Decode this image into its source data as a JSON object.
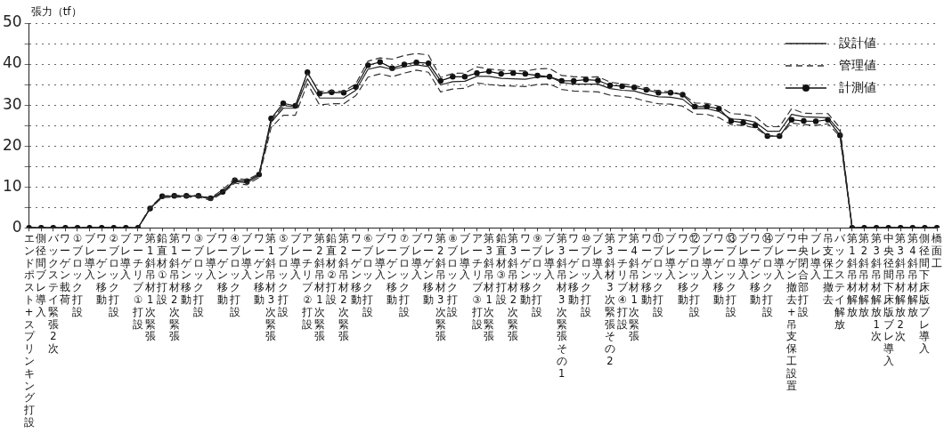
{
  "chart_data": {
    "type": "line",
    "ylabel": "張力（tf）",
    "categories": [
      "エンドポスト+スプリンキング打設",
      "側径間ブレ導入",
      "バックステイ緊張2次",
      "ワーゲン載荷",
      "①ブロック打設",
      "ブレ導入",
      "ワーゲン移動",
      "②ブロック打設",
      "ブレ導入",
      "アーチリブ①打設",
      "第1斜吊材1次緊張",
      "鉛直材①打設",
      "第1斜吊材2次緊張",
      "ワーゲン移動",
      "③ブロック打設",
      "ブレ導入",
      "ワーゲン移動",
      "④ブロック打設",
      "ブレ導入",
      "ワーゲン移動",
      "第1斜吊材3次緊張",
      "⑤ブロック打設",
      "ブレ導入",
      "アーチリブ②打設",
      "第2斜吊材1次緊張",
      "鉛直材②打設",
      "第2斜吊材2次緊張",
      "ワーゲン移動",
      "⑥ブロック打設",
      "ブレ導入",
      "ワーゲン移動",
      "⑦ブロック打設",
      "ブレ導入",
      "ワーゲン移動",
      "第2斜吊材3次緊張",
      "⑧ブロック打設",
      "ブレ導入",
      "アーチリブ③打設",
      "第3斜吊材1次緊張",
      "鉛直材③打設",
      "第3斜吊材2次緊張",
      "ワーゲン移動",
      "⑨ブロック打設",
      "ブレ導入",
      "第3斜吊材3次緊張その1",
      "ワーゲン移動",
      "⑩ブロック打設",
      "ブレ導入",
      "第3斜材3次緊張その2",
      "アーチリブ④打設",
      "第4斜吊材1次緊張",
      "ワーゲン移動",
      "⑪ブロック打設",
      "ブレ導入",
      "ワーゲン移動",
      "⑫ブロック打設",
      "ブレ導入",
      "ワーゲン移動",
      "⑬ブロック打設",
      "ブレ導入",
      "ワーゲン移動",
      "⑭ブロック打設",
      "ブレ導入",
      "ワーゲン撤去+吊支保工設置",
      "中央閉合部打設",
      "ブレ導入",
      "吊支保工撤去",
      "バックステイ解放",
      "第1斜吊材解放",
      "第2斜吊材解放",
      "第3斜吊材解放1次",
      "中央径間下床版ブレ導入",
      "第3斜吊材解放2次",
      "第4斜吊材解放",
      "側径間下床版ブレ導入",
      "橋面工"
    ],
    "series": [
      {
        "name": "設計値",
        "color": "#222222",
        "line_style": "solid",
        "marker": "none",
        "values": [
          0,
          0,
          0,
          0,
          0,
          0,
          0,
          0,
          0,
          0,
          4.8,
          7.6,
          7.7,
          7.7,
          7.7,
          7.0,
          8.8,
          11.3,
          11.0,
          12.7,
          25.8,
          29.2,
          29.2,
          36.4,
          31.7,
          31.7,
          31.7,
          33.6,
          38.7,
          39.4,
          38.7,
          39.3,
          39.8,
          39.4,
          34.9,
          35.7,
          35.8,
          37.0,
          37.0,
          36.5,
          36.4,
          36.3,
          36.8,
          36.9,
          35.5,
          35.1,
          35.1,
          35.1,
          34.0,
          33.6,
          33.4,
          32.6,
          32.0,
          31.9,
          31.4,
          29.1,
          29.1,
          28.4,
          26.6,
          26.4,
          25.8,
          23.6,
          23.6,
          27.7,
          27.1,
          27.0,
          26.9,
          23.6,
          0,
          0,
          0,
          0,
          0,
          0,
          0,
          0
        ]
      },
      {
        "name": "管理値",
        "color": "#333333",
        "line_style": "dashed",
        "marker": "none",
        "values": [
          0,
          0,
          0,
          0,
          0,
          0,
          0,
          0,
          0,
          0,
          5.0,
          7.8,
          7.9,
          7.9,
          7.9,
          7.3,
          9.3,
          12.0,
          11.8,
          13.2,
          26.3,
          29.8,
          29.6,
          37.7,
          33.3,
          33.4,
          33.3,
          35.2,
          40.7,
          41.5,
          41.2,
          42.1,
          42.6,
          42.2,
          36.7,
          37.7,
          37.8,
          39.3,
          38.8,
          38.5,
          38.4,
          38.3,
          38.8,
          38.9,
          37.2,
          36.9,
          36.8,
          36.9,
          35.6,
          35.1,
          34.8,
          34.0,
          33.4,
          33.2,
          32.6,
          30.5,
          30.4,
          29.7,
          27.9,
          27.7,
          27.1,
          24.7,
          24.7,
          29.1,
          28.0,
          27.9,
          27.9,
          24.4,
          0,
          0,
          0,
          0,
          0,
          0,
          0,
          0
        ]
      },
      {
        "color": "#333333",
        "line_style": "dashed",
        "marker": "none",
        "values": [
          0,
          0,
          0,
          0,
          0,
          0,
          0,
          0,
          0,
          0,
          4.6,
          7.4,
          7.5,
          7.5,
          7.5,
          6.7,
          8.5,
          10.9,
          10.5,
          12.3,
          24.5,
          27.5,
          27.5,
          35.2,
          30.0,
          30.3,
          30.3,
          32.3,
          36.8,
          37.6,
          36.9,
          37.8,
          38.5,
          38.0,
          33.2,
          33.9,
          34.1,
          35.4,
          35.0,
          34.7,
          34.6,
          34.5,
          35.0,
          35.1,
          33.8,
          33.4,
          33.3,
          33.2,
          32.4,
          32.1,
          31.7,
          30.9,
          30.3,
          30.2,
          29.7,
          27.8,
          27.7,
          26.9,
          25.2,
          25.0,
          24.4,
          22.5,
          22.5,
          25.6,
          25.2,
          25.0,
          25.4,
          22.3,
          0,
          0,
          0,
          0,
          0,
          0,
          0,
          0
        ]
      },
      {
        "name": "計測値",
        "color": "#111111",
        "line_style": "solid",
        "marker": "circle",
        "values": [
          0,
          0,
          0,
          0,
          0,
          0,
          0,
          0,
          0,
          0,
          4.7,
          7.7,
          7.8,
          7.8,
          7.8,
          7.2,
          8.8,
          11.6,
          11.4,
          13.0,
          26.7,
          30.4,
          29.8,
          38.0,
          32.8,
          33.1,
          33.0,
          34.4,
          39.7,
          40.5,
          39.0,
          39.9,
          40.4,
          40.2,
          35.9,
          36.9,
          36.9,
          37.8,
          38.2,
          37.6,
          37.8,
          37.6,
          37.2,
          36.9,
          35.9,
          35.9,
          36.2,
          36.0,
          34.8,
          34.6,
          34.3,
          33.7,
          33.0,
          33.0,
          32.5,
          29.6,
          29.6,
          29.1,
          26.1,
          25.7,
          25.0,
          22.4,
          22.4,
          26.4,
          26.1,
          26.0,
          26.4,
          22.6,
          0,
          0,
          0,
          0,
          0,
          0,
          0,
          0
        ]
      }
    ],
    "ylim": [
      0,
      50
    ],
    "yticks": [
      0,
      {
        "value": 5,
        "label": null
      },
      10,
      {
        "value": 15,
        "label": null
      },
      20,
      {
        "value": 25,
        "label": null
      },
      30,
      {
        "value": 35,
        "label": null
      },
      40,
      {
        "value": 45,
        "label": null
      },
      50
    ],
    "grid": "y",
    "legend": "top right"
  }
}
